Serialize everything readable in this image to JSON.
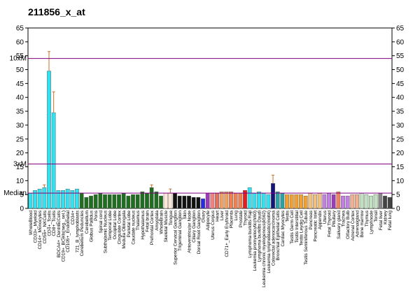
{
  "chart_data": {
    "type": "bar",
    "title": "211856_x_at",
    "categories": [
      "WholeBlood",
      "CD33+_Myeloid",
      "CD14+_Monocytes",
      "CD56+_NKCells",
      "CD4+_Tcells",
      "CD8+_Tcells",
      "BDCA4+_DentriticCells",
      "CD19+_BCells(neg._sel.)",
      "CD105+_Endothelial",
      "CD34+",
      "721_B_lymphoblasts",
      "Cerebellum Peduncles",
      "Cerebellum",
      "Globus Pallidus",
      "Pons",
      "Spinal cord",
      "Subthalamic Nucleus",
      "Temporal Lobe",
      "Occipital Lobe",
      "Cingulate Cortex",
      "Medulla Oblongata",
      "Parietal Lobe",
      "Caudate nucleus",
      "Thalamus",
      "Hypothalamus",
      "Fetal brain",
      "Prefrontal Cortex",
      "Amygdala",
      "WholeBrain",
      "Skeletal Muscle",
      "Tongue",
      "Superior Cervical Ganglion",
      "Trigeminal Ganglion",
      "Skin",
      "Atrioventricular Node",
      "Ciliary Ganglion",
      "Dorsal Root Ganglion",
      "Ovary",
      "Adipocyte",
      "Uterus Corpus",
      "Heart",
      "Liver",
      "CD71+_Early Erythroid",
      "Placenta",
      "Lung",
      "Prostate",
      "Thyroid",
      "Lymphoma burkitts Raji",
      "Leukemia promyelocytic(hl60)",
      "Lymphoma burkitts Daudi",
      "Leukemia chronic myelogenous(k562)",
      "Leukemia lymphoblastic(molt4)",
      "Colorectal adenocarcinoma",
      "Bronchial Epithelial Cells",
      "Cardiac Myocytes",
      "Testis",
      "Testis Germ Cell",
      "Testis Interstitial",
      "Testis Leydig Cell",
      "Testis Seminiferous Tubule",
      "Pancreas",
      "Pancreatic Islet",
      "Appendix",
      "Uterus",
      "Fetal Thyroid",
      "Pituitary",
      "Salivary gland",
      "Trachea",
      "Olfactory Bulb",
      "Adrenal Cortex",
      "Adrenalgland",
      "Bone marrow",
      "Thymus",
      "Lymphnode",
      "Tonsil",
      "Fetal liver",
      "Kidney",
      "Fetal lung"
    ],
    "values": [
      5.5,
      6.5,
      7,
      7.5,
      49.5,
      34.5,
      6.5,
      6.5,
      7,
      6.5,
      7,
      5.5,
      4,
      4.5,
      5,
      5.5,
      5,
      5,
      5,
      5,
      5.5,
      4.5,
      5,
      5,
      6,
      5.5,
      7.5,
      6,
      4.5,
      5.5,
      5.5,
      5.5,
      4.5,
      4.5,
      4.5,
      4,
      4,
      3.5,
      5.5,
      5.5,
      5.5,
      6,
      6,
      6,
      5.5,
      5.5,
      6.5,
      7.5,
      5.5,
      6,
      5.5,
      5,
      9,
      6,
      5.5,
      5,
      5,
      5,
      5,
      4.5,
      5.5,
      5,
      5.5,
      5,
      5.5,
      5,
      6,
      4.5,
      4.5,
      5,
      5,
      5.5,
      5,
      4.5,
      5,
      5.5,
      4.5,
      4
    ],
    "errors": [
      null,
      null,
      null,
      1,
      7,
      7.5,
      null,
      null,
      null,
      null,
      null,
      null,
      null,
      null,
      null,
      null,
      null,
      null,
      null,
      null,
      null,
      null,
      null,
      null,
      null,
      null,
      1,
      null,
      null,
      null,
      1.5,
      null,
      null,
      null,
      null,
      null,
      null,
      null,
      null,
      null,
      null,
      null,
      null,
      null,
      null,
      null,
      null,
      null,
      null,
      null,
      null,
      null,
      3,
      null,
      null,
      null,
      null,
      null,
      null,
      null,
      null,
      null,
      null,
      null,
      null,
      null,
      null,
      null,
      null,
      null,
      null,
      null,
      null,
      null,
      null,
      null,
      null,
      null
    ],
    "colors": [
      "#33e0f0",
      "#33e0f0",
      "#33e0f0",
      "#33e0f0",
      "#33e0f0",
      "#33e0f0",
      "#33e0f0",
      "#33e0f0",
      "#33e0f0",
      "#33e0f0",
      "#33e0f0",
      "#1f6e1f",
      "#1f6e1f",
      "#1f6e1f",
      "#1f6e1f",
      "#1f6e1f",
      "#1f6e1f",
      "#1f6e1f",
      "#1f6e1f",
      "#1f6e1f",
      "#1f6e1f",
      "#1f6e1f",
      "#1f6e1f",
      "#1f6e1f",
      "#1f6e1f",
      "#1f6e1f",
      "#1f6e1f",
      "#1f6e1f",
      "#1f6e1f",
      "#fbe6d8",
      "#fbe6d8",
      "#111111",
      "#111111",
      "#111111",
      "#111111",
      "#111111",
      "#111111",
      "#2a2ae0",
      "#9b3bb8",
      "#f08080",
      "#e07060",
      "#f0a060",
      "#f0a060",
      "#f08050",
      "#f08050",
      "#f08050",
      "#e02020",
      "#33e0f0",
      "#33e0f0",
      "#33e0f0",
      "#33e0f0",
      "#33e0f0",
      "#14147a",
      "#2aa0a0",
      "#2aa0a0",
      "#f0a030",
      "#f0a030",
      "#f0a030",
      "#f0a030",
      "#f0a030",
      "#f0c080",
      "#f0c080",
      "#f0c080",
      "#c080e0",
      "#c080e0",
      "#9b3bb8",
      "#f08060",
      "#c080e0",
      "#c080e0",
      "#f0b090",
      "#f0b090",
      "#c0e0c0",
      "#c0e0c0",
      "#c0e0c0",
      "#c0e0c0",
      "#888888",
      "#444444",
      "#444444"
    ],
    "reference_lines": [
      {
        "label": "10xM",
        "value": 54
      },
      {
        "label": "3xM",
        "value": 16
      },
      {
        "label": "Median",
        "value": 5.5
      }
    ],
    "ylim": [
      0,
      65
    ],
    "yticks": [
      0,
      5,
      10,
      15,
      20,
      25,
      30,
      35,
      40,
      45,
      50,
      55,
      60,
      65
    ]
  }
}
